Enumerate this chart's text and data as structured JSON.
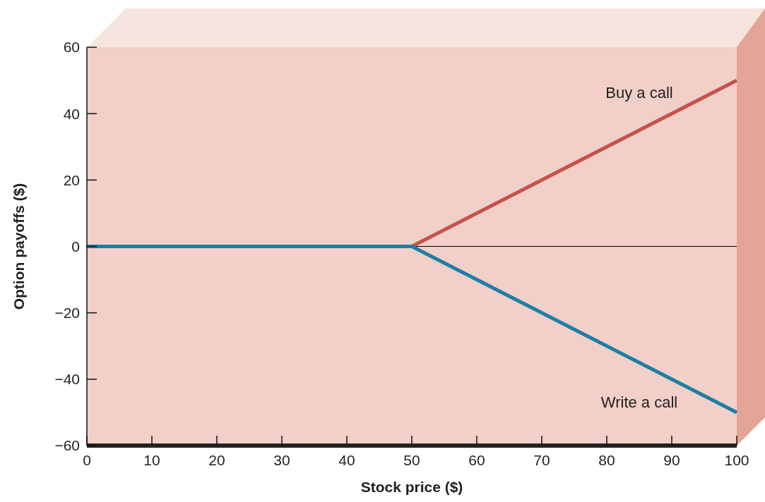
{
  "chart_data": {
    "type": "line",
    "xlabel": "Stock price ($)",
    "ylabel": "Option payoffs ($)",
    "x": [
      0,
      50,
      100
    ],
    "series": [
      {
        "name": "Buy a call",
        "color": "#c4534a",
        "values": [
          0,
          0,
          50
        ]
      },
      {
        "name": "Write a call",
        "color": "#1b7fa5",
        "values": [
          0,
          0,
          -50
        ]
      }
    ],
    "xlim": [
      0,
      100
    ],
    "xticks": [
      0,
      10,
      20,
      30,
      40,
      50,
      60,
      70,
      80,
      90,
      100
    ],
    "ylim": [
      -60,
      60
    ],
    "yticks": [
      {
        "value": -60,
        "label": "−60"
      },
      {
        "value": -40,
        "label": "−40"
      },
      {
        "value": -20,
        "label": "−20"
      },
      0,
      20,
      40,
      60
    ],
    "ref_lines": [
      {
        "axis": "y",
        "value": 0,
        "color": "#000000"
      }
    ],
    "grid": false,
    "marker": "none",
    "line_style": "solid"
  }
}
